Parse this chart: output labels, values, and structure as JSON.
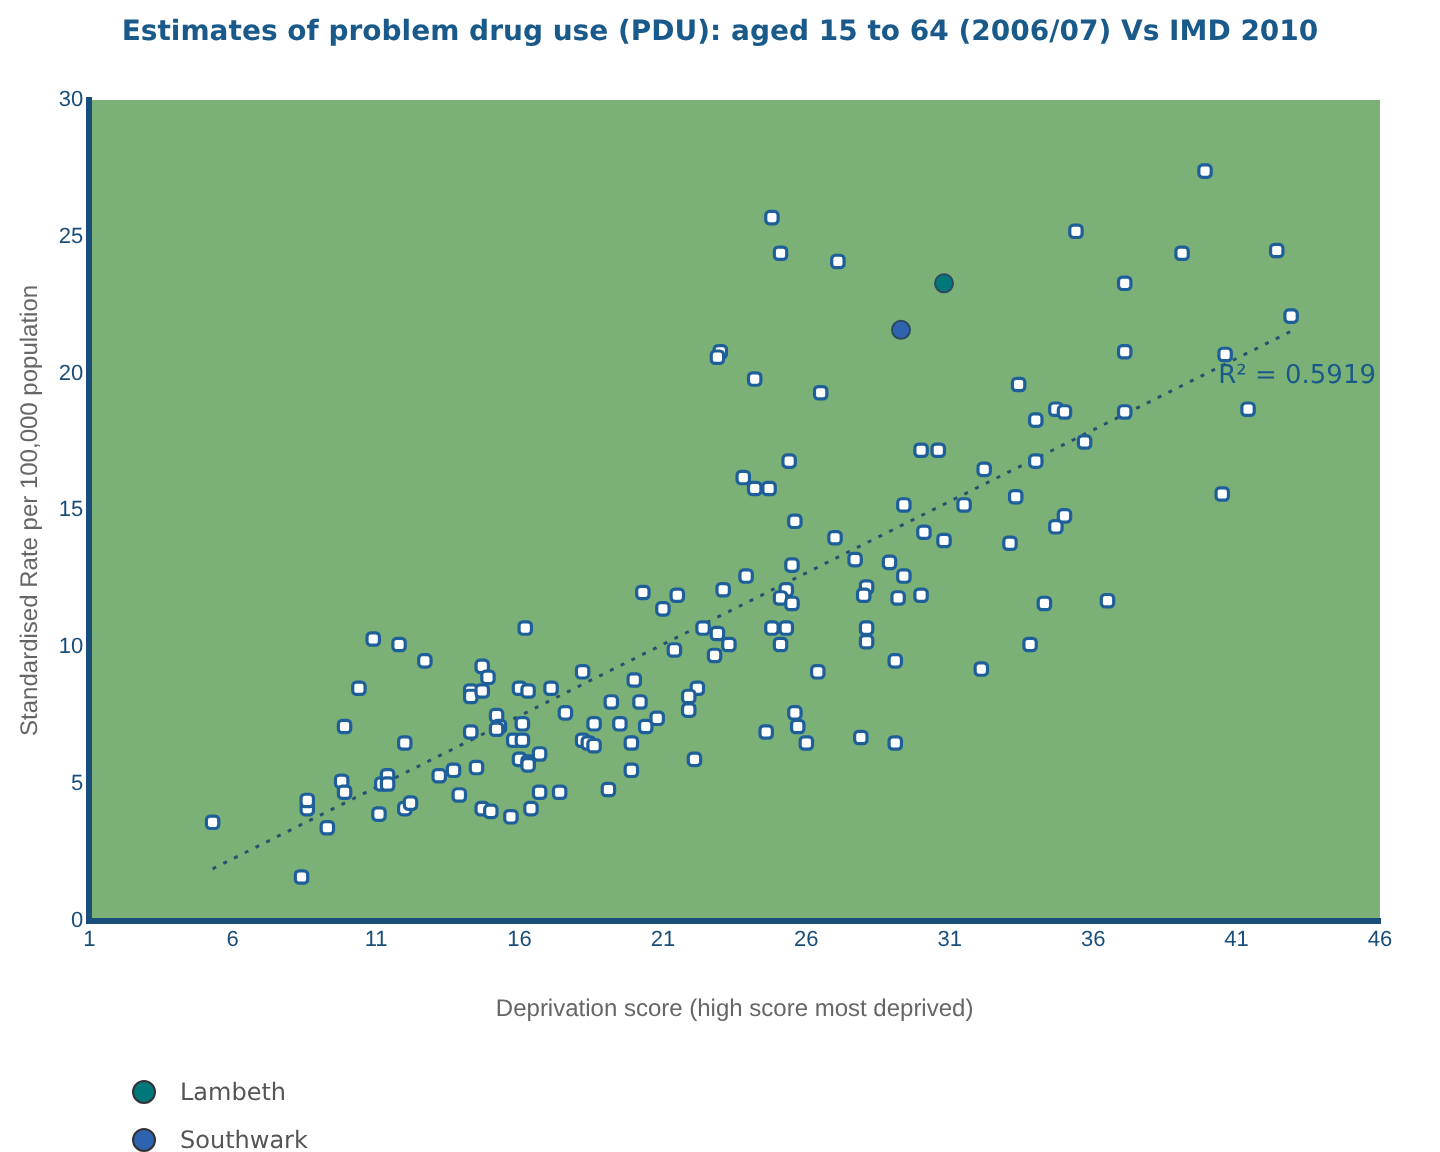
{
  "chart_data": {
    "type": "scatter",
    "title": "Estimates of problem drug use (PDU): aged 15 to 64 (2006/07) Vs IMD 2010",
    "xlabel": "Deprivation score (high score most deprived)",
    "ylabel": "Standardised Rate per 100,000 population",
    "xlim": [
      1,
      46
    ],
    "xticks": [
      1,
      6,
      11,
      16,
      21,
      26,
      31,
      36,
      41,
      46
    ],
    "ylim": [
      0,
      30
    ],
    "yticks": [
      0,
      5,
      10,
      15,
      20,
      25,
      30
    ],
    "grid": false,
    "legend": "bottom",
    "marker": "square",
    "annotations": [
      "R² = 0.5919"
    ],
    "series": [
      {
        "color": "#1f5f99",
        "x": [
          5.3,
          8.4,
          8.6,
          8.6,
          9.3,
          9.8,
          9.9,
          10.4,
          9.9,
          10.9,
          11.8,
          12.7,
          12.0,
          11.1,
          12.0,
          12.2,
          11.2,
          11.4,
          11.4,
          13.2,
          13.7,
          13.9,
          14.5,
          14.3,
          14.7,
          14.9,
          14.3,
          14.3,
          14.7,
          15.2,
          15.3,
          15.2,
          14.7,
          15.0,
          15.7,
          16.4,
          16.7,
          17.4,
          16.2,
          16.0,
          16.3,
          16.1,
          15.8,
          16.1,
          16.0,
          16.3,
          16.3,
          16.7,
          17.1,
          17.6,
          18.2,
          18.2,
          18.4,
          18.6,
          18.6,
          19.2,
          19.5,
          19.1,
          20.0,
          20.2,
          19.9,
          20.4,
          20.8,
          19.9,
          20.3,
          21.0,
          25.6,
          27.0,
          27.7,
          28.9,
          29.4,
          30.1,
          30.8,
          33.1,
          21.5,
          23.1,
          23.9,
          25.5,
          25.3,
          25.1,
          25.5,
          24.8,
          25.3,
          25.1,
          22.4,
          22.9,
          23.3,
          22.8,
          21.4,
          22.2,
          21.9,
          21.9,
          22.1,
          26.4,
          25.6,
          25.7,
          24.6,
          26.0,
          27.9,
          29.1,
          28.1,
          28.0,
          29.2,
          30.0,
          28.1,
          28.1,
          29.1,
          32.1,
          24.8,
          25.1,
          27.1,
          23.0,
          22.9,
          24.2,
          26.5,
          33.4,
          34.0,
          34.7,
          30.0,
          30.6,
          32.2,
          34.0,
          25.4,
          23.8,
          24.2,
          24.7,
          29.4,
          31.5,
          33.3,
          34.7,
          39.9,
          35.4,
          39.1,
          42.4,
          37.1,
          42.9,
          37.1,
          40.6,
          35.0,
          37.1,
          41.4,
          35.7,
          35.0,
          40.5,
          34.3,
          36.5,
          33.8
        ],
        "values": [
          3.6,
          1.6,
          4.1,
          4.4,
          3.4,
          5.1,
          4.7,
          8.5,
          7.1,
          10.3,
          10.1,
          9.5,
          6.5,
          3.9,
          4.1,
          4.3,
          5.0,
          5.3,
          5.0,
          5.3,
          5.5,
          4.6,
          5.6,
          6.9,
          9.3,
          8.9,
          8.4,
          8.2,
          8.4,
          7.5,
          7.1,
          7.0,
          4.1,
          4.0,
          3.8,
          4.1,
          4.7,
          4.7,
          10.7,
          8.5,
          8.4,
          7.2,
          6.6,
          6.6,
          5.9,
          5.8,
          5.7,
          6.1,
          8.5,
          7.6,
          9.1,
          6.6,
          6.5,
          6.4,
          7.2,
          8.0,
          7.2,
          4.8,
          8.8,
          8.0,
          6.5,
          7.1,
          7.4,
          5.5,
          12.0,
          11.4,
          14.6,
          14.0,
          13.2,
          13.1,
          12.6,
          14.2,
          13.9,
          13.8,
          11.9,
          12.1,
          12.6,
          13.0,
          12.1,
          11.8,
          11.6,
          10.7,
          10.7,
          10.1,
          10.7,
          10.5,
          10.1,
          9.7,
          9.9,
          8.5,
          8.2,
          7.7,
          5.9,
          9.1,
          7.6,
          7.1,
          6.9,
          6.5,
          6.7,
          6.5,
          12.2,
          11.9,
          11.8,
          11.9,
          10.7,
          10.2,
          9.5,
          9.2,
          25.7,
          24.4,
          24.1,
          20.8,
          20.6,
          19.8,
          19.3,
          19.6,
          18.3,
          18.7,
          17.2,
          17.2,
          16.5,
          16.8,
          16.8,
          16.2,
          15.8,
          15.8,
          15.2,
          15.2,
          15.5,
          14.4,
          27.4,
          25.2,
          24.4,
          24.5,
          23.3,
          22.1,
          20.8,
          20.7,
          18.6,
          18.6,
          18.7,
          17.5,
          14.8,
          15.6,
          11.6,
          11.7,
          10.1
        ]
      },
      {
        "name": "Lambeth",
        "color": "#00787a",
        "marker": "circle",
        "x": [
          30.8
        ],
        "values": [
          23.3
        ]
      },
      {
        "name": "Southwark",
        "color": "#2e63b0",
        "marker": "circle",
        "x": [
          29.3
        ],
        "values": [
          21.6
        ]
      },
      {
        "type": "line",
        "color": "#2a5070",
        "line_style": "dotted",
        "marker": "none",
        "x": [
          5.3,
          43.0
        ],
        "values": [
          1.9,
          21.6
        ]
      }
    ]
  }
}
